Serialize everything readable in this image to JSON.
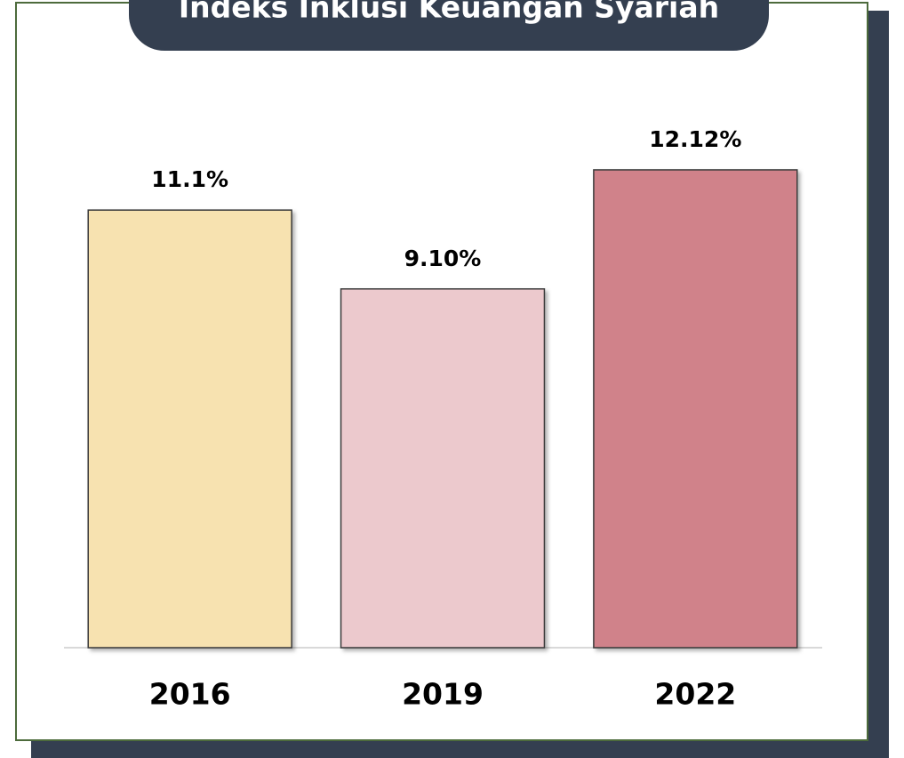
{
  "chart_data": {
    "type": "bar",
    "title": "Indeks Inklusi Keuangan Syariah",
    "categories": [
      "2016",
      "2019",
      "2022"
    ],
    "values": [
      11.1,
      9.1,
      12.12
    ],
    "value_labels": [
      "11.1%",
      "9.10%",
      "12.12%"
    ],
    "colors": [
      "#f7e2b0",
      "#ecc9cd",
      "#d0828a"
    ],
    "ylim": [
      0,
      16
    ]
  }
}
